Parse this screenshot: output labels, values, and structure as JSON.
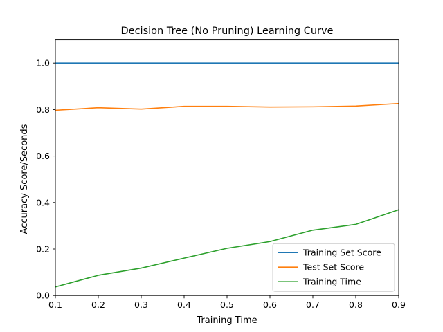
{
  "chart_data": {
    "type": "line",
    "title": "Decision Tree (No Pruning) Learning Curve",
    "xlabel": "Training Time",
    "ylabel": "Accuracy Score/Seconds",
    "xlim": [
      0.1,
      0.9
    ],
    "ylim": [
      0.0,
      1.1
    ],
    "xticks": [
      "0.1",
      "0.2",
      "0.3",
      "0.4",
      "0.5",
      "0.6",
      "0.7",
      "0.8",
      "0.9"
    ],
    "yticks": [
      "0.0",
      "0.2",
      "0.4",
      "0.6",
      "0.8",
      "1.0"
    ],
    "grid": false,
    "legend_position": "lower-right",
    "x": [
      0.1,
      0.2,
      0.3,
      0.4,
      0.5,
      0.6,
      0.7,
      0.8,
      0.9
    ],
    "series": [
      {
        "name": "Training Set Score",
        "color": "#1f77b4",
        "values": [
          1.0,
          1.0,
          1.0,
          1.0,
          1.0,
          1.0,
          1.0,
          1.0,
          1.0
        ]
      },
      {
        "name": "Test Set Score",
        "color": "#ff7f0e",
        "values": [
          0.797,
          0.808,
          0.802,
          0.814,
          0.814,
          0.811,
          0.812,
          0.815,
          0.826
        ]
      },
      {
        "name": "Training Time",
        "color": "#2ca02c",
        "values": [
          0.037,
          0.087,
          0.118,
          0.161,
          0.203,
          0.232,
          0.281,
          0.306,
          0.369
        ]
      }
    ]
  }
}
